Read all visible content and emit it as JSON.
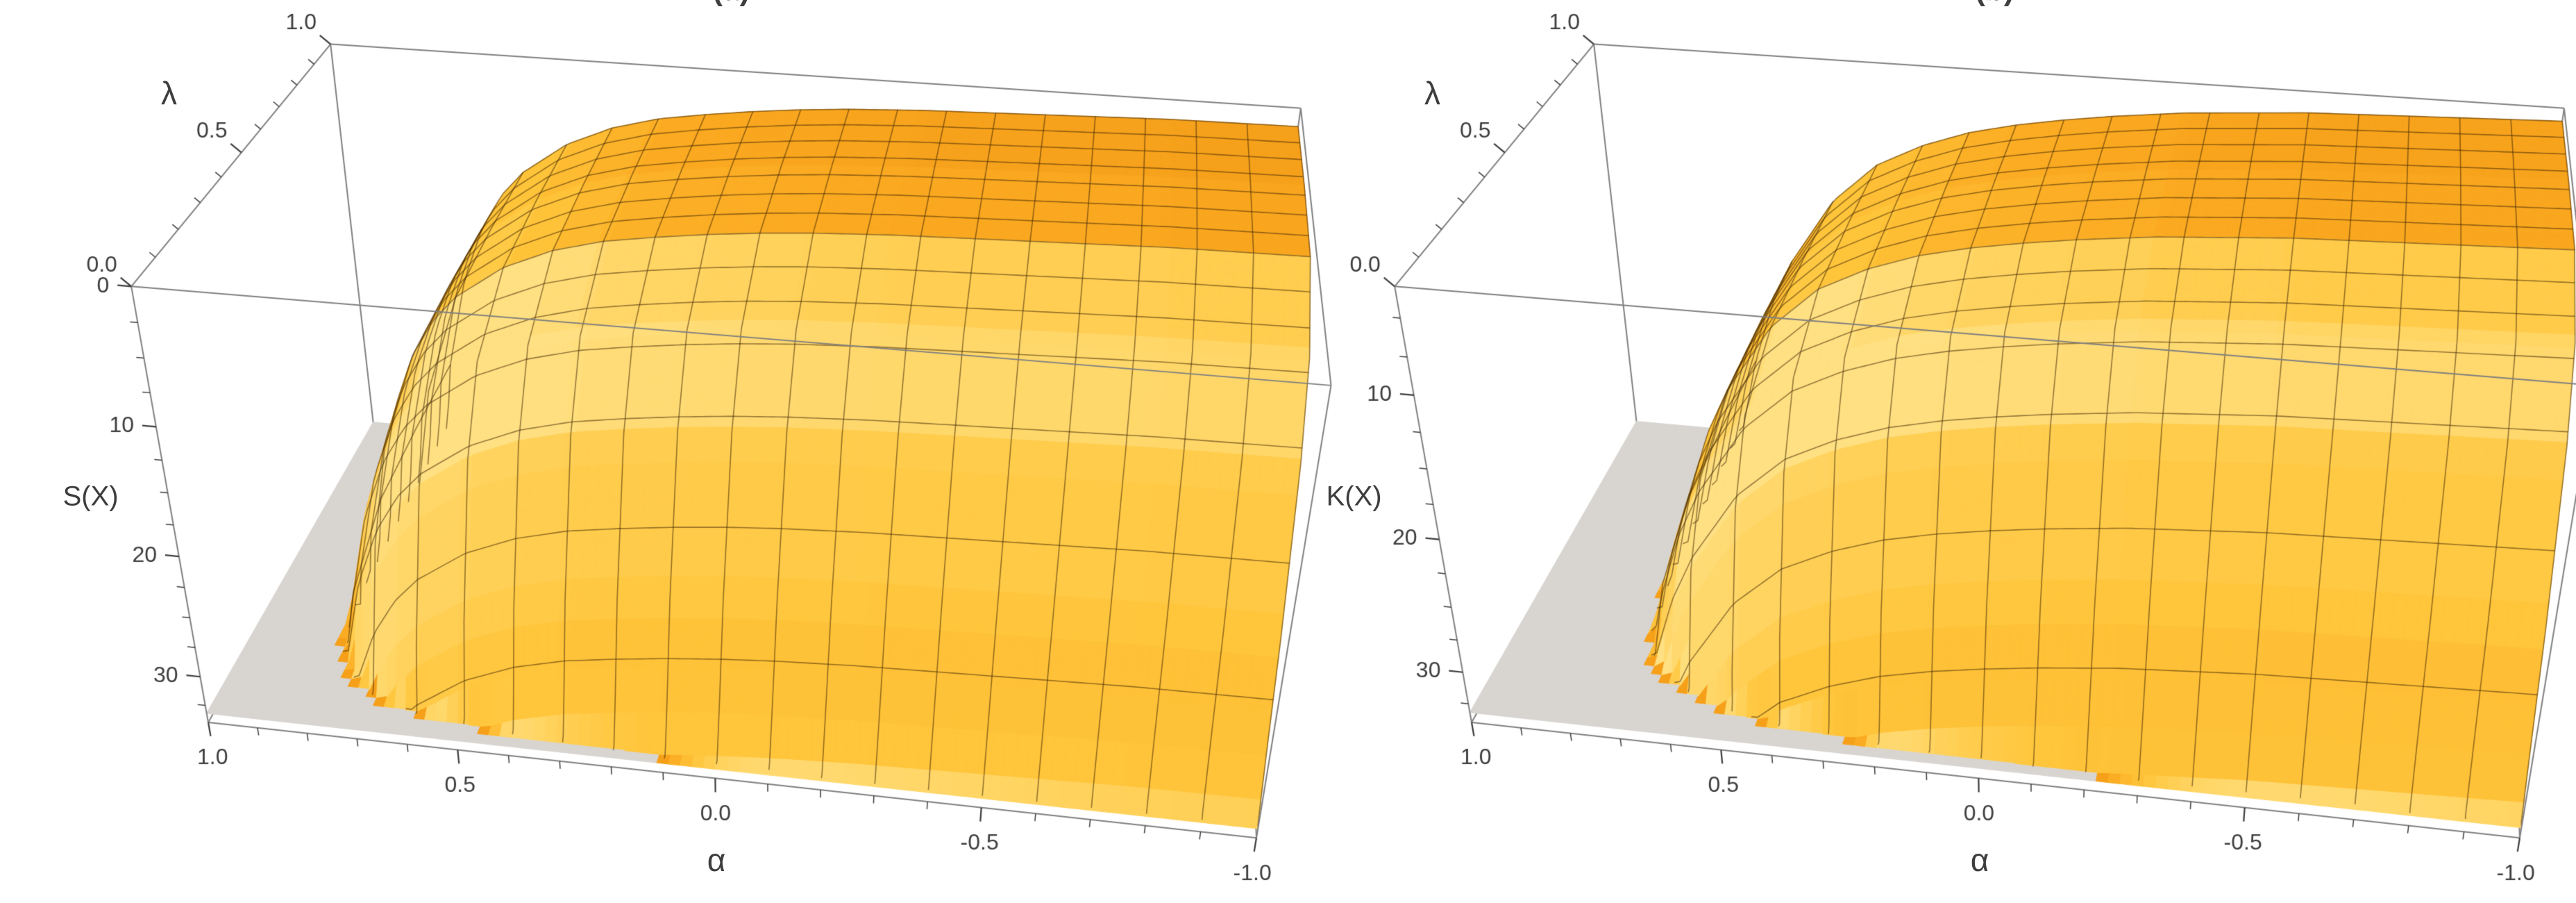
{
  "figure": {
    "background": "#ffffff",
    "description": "Two 3D surface plots of S(X) and K(X) versus alpha and lambda"
  },
  "style": {
    "surface_palette": [
      [
        0,
        "#a34e00"
      ],
      [
        0.42,
        "#d6790a"
      ],
      [
        0.58,
        "#f09310"
      ],
      [
        0.72,
        "#fbab22"
      ],
      [
        0.84,
        "#ffc63c"
      ],
      [
        1,
        "#ffe082"
      ]
    ],
    "clipped_color": "#d8d5d1",
    "mesh_color": "rgba(64,38,5,0.55)",
    "box_edge_color": "#808080",
    "tick_color": "#3d3d3d",
    "label_color": "#3d3d3d"
  },
  "chart_data": [
    {
      "type": "surface",
      "panel": "a",
      "title": "(a)",
      "xlabel": "α",
      "ylabel": "λ",
      "zlabel": "S(X)",
      "x_ticks": [
        "1.0",
        "0.5",
        "0.0",
        "-0.5",
        "-1.0"
      ],
      "x_tick_values": [
        1,
        0.5,
        0,
        -0.5,
        -1
      ],
      "y_ticks": [
        "0.0",
        "0.5",
        "1.0"
      ],
      "y_tick_values": [
        0,
        0.5,
        1
      ],
      "z_ticks": [
        "0",
        "10",
        "20",
        "30"
      ],
      "z_tick_values": [
        0,
        10,
        20,
        30
      ],
      "x_range": [
        1,
        -1
      ],
      "y_range": [
        0,
        1
      ],
      "z_range": [
        0,
        34
      ],
      "z_axis_reversed": true,
      "clip_z": 33.2,
      "alpha": [
        1.0,
        0.95,
        0.9,
        0.85,
        0.8,
        0.75,
        0.7,
        0.65,
        0.6,
        0.5,
        0.4,
        0.3,
        0.2,
        0.1,
        0.0,
        -0.1,
        -0.25,
        -0.5,
        -0.75,
        -1.0
      ],
      "lambda": [
        0,
        0.05,
        0.1,
        0.2,
        0.3,
        0.5,
        0.75,
        1.0
      ],
      "z": [
        [
          133,
          113,
          93,
          75,
          60,
          52.1,
          47.4,
          44.4,
          42.4,
          39.8,
          38.2,
          37.2,
          36.6,
          36.1,
          35.7,
          35.4,
          35.1,
          34.8,
          34.5,
          34.4
        ],
        [
          126.5,
          106.5,
          86.5,
          68.5,
          53.5,
          45.6,
          40.9,
          37.9,
          35.9,
          33.3,
          31.7,
          30.7,
          30.1,
          29.6,
          29.2,
          28.9,
          28.6,
          28.3,
          28.0,
          27.9
        ],
        [
          119.2,
          99.2,
          79.2,
          61.2,
          46.2,
          38.3,
          33.6,
          30.6,
          28.6,
          26.0,
          24.4,
          23.4,
          22.8,
          22.3,
          21.9,
          21.6,
          21.3,
          21.0,
          20.7,
          20.6
        ],
        [
          108.7,
          88.7,
          68.7,
          50.7,
          35.7,
          27.8,
          23.1,
          20.1,
          18.1,
          15.5,
          13.9,
          12.9,
          12.3,
          11.8,
          11.4,
          11.1,
          10.8,
          10.5,
          10.2,
          10.1
        ],
        [
          103.4,
          83.4,
          63.4,
          45.4,
          30.4,
          22.5,
          17.8,
          14.8,
          12.8,
          10.2,
          8.6,
          7.6,
          7.0,
          6.5,
          6.1,
          5.8,
          5.5,
          5.2,
          4.9,
          4.8
        ],
        [
          100.4,
          80.4,
          60.4,
          42.4,
          27.4,
          19.5,
          14.8,
          11.8,
          9.8,
          7.2,
          5.6,
          4.6,
          4.0,
          3.5,
          3.1,
          2.8,
          2.5,
          2.2,
          1.9,
          1.8
        ],
        [
          100,
          80,
          60,
          42,
          27,
          19.1,
          14.4,
          11.4,
          9.4,
          6.8,
          5.2,
          4.2,
          3.6,
          3.1,
          2.7,
          2.4,
          2.1,
          1.8,
          1.5,
          1.4
        ],
        [
          100,
          80,
          60,
          42,
          27,
          19.1,
          14.4,
          11.4,
          9.4,
          6.8,
          5.2,
          4.2,
          3.6,
          3.1,
          2.7,
          2.4,
          2.1,
          1.8,
          1.5,
          1.4
        ]
      ]
    },
    {
      "type": "surface",
      "panel": "b",
      "title": "(b)",
      "xlabel": "α",
      "ylabel": "λ",
      "zlabel": "K(X)",
      "x_ticks": [
        "1.0",
        "0.5",
        "0.0",
        "-0.5",
        "-1.0"
      ],
      "x_tick_values": [
        1,
        0.5,
        0,
        -0.5,
        -1
      ],
      "y_ticks": [
        "0.0",
        "0.5",
        "1.0"
      ],
      "y_tick_values": [
        0,
        0.5,
        1
      ],
      "z_ticks": [
        "10",
        "20",
        "30"
      ],
      "z_tick_values": [
        10,
        20,
        30
      ],
      "x_range": [
        1,
        -1
      ],
      "y_range": [
        0,
        1
      ],
      "z_range": [
        3,
        34
      ],
      "z_axis_reversed": true,
      "clip_z": 33.2,
      "alpha": [
        1.0,
        0.95,
        0.9,
        0.85,
        0.8,
        0.75,
        0.7,
        0.65,
        0.6,
        0.5,
        0.4,
        0.3,
        0.2,
        0.1,
        0.0,
        -0.1,
        -0.25,
        -0.5,
        -0.75,
        -1.0
      ],
      "lambda": [
        0,
        0.05,
        0.1,
        0.2,
        0.3,
        0.5,
        0.75,
        1.0
      ],
      "z": [
        [
          151,
          141,
          121,
          91,
          76,
          65,
          58,
          53,
          49.5,
          44.5,
          41.5,
          39.8,
          38.6,
          37.8,
          37.2,
          36.7,
          36.1,
          35.5,
          35.2,
          34.9
        ],
        [
          144.4,
          134.4,
          114.4,
          84.4,
          69.4,
          58.4,
          51.4,
          46.4,
          42.9,
          37.9,
          34.9,
          33.2,
          32.0,
          31.2,
          30.6,
          30.1,
          29.5,
          28.9,
          28.6,
          28.3
        ],
        [
          137.2,
          127.2,
          107.2,
          77.2,
          62.2,
          51.2,
          44.2,
          39.2,
          35.7,
          30.7,
          27.7,
          26.0,
          24.8,
          24.0,
          23.4,
          22.9,
          22.3,
          21.7,
          21.4,
          21.1
        ],
        [
          127.2,
          117.2,
          97.2,
          67.2,
          52.2,
          41.2,
          34.2,
          29.2,
          25.7,
          20.7,
          17.7,
          16.0,
          14.8,
          14.0,
          13.4,
          12.9,
          12.3,
          11.7,
          11.4,
          11.1
        ],
        [
          122.6,
          112.6,
          92.6,
          62.6,
          47.6,
          36.6,
          29.6,
          24.6,
          21.1,
          16.1,
          13.1,
          11.4,
          10.2,
          9.4,
          8.8,
          8.3,
          7.7,
          7.1,
          6.8,
          6.5
        ],
        [
          120.3,
          110.3,
          90.3,
          60.3,
          45.3,
          34.3,
          27.3,
          22.3,
          18.8,
          13.8,
          10.8,
          9.1,
          7.9,
          7.1,
          6.5,
          6.0,
          5.4,
          4.8,
          4.5,
          4.2
        ],
        [
          120,
          110,
          90,
          60,
          45,
          34,
          27,
          22,
          18.5,
          13.5,
          10.5,
          8.8,
          7.6,
          6.8,
          6.2,
          5.7,
          5.1,
          4.5,
          4.2,
          3.9
        ],
        [
          120,
          110,
          90,
          60,
          45,
          34,
          27,
          22,
          18.5,
          13.5,
          10.5,
          8.8,
          7.6,
          6.8,
          6.2,
          5.7,
          5.1,
          4.5,
          4.2,
          3.9
        ]
      ]
    }
  ]
}
